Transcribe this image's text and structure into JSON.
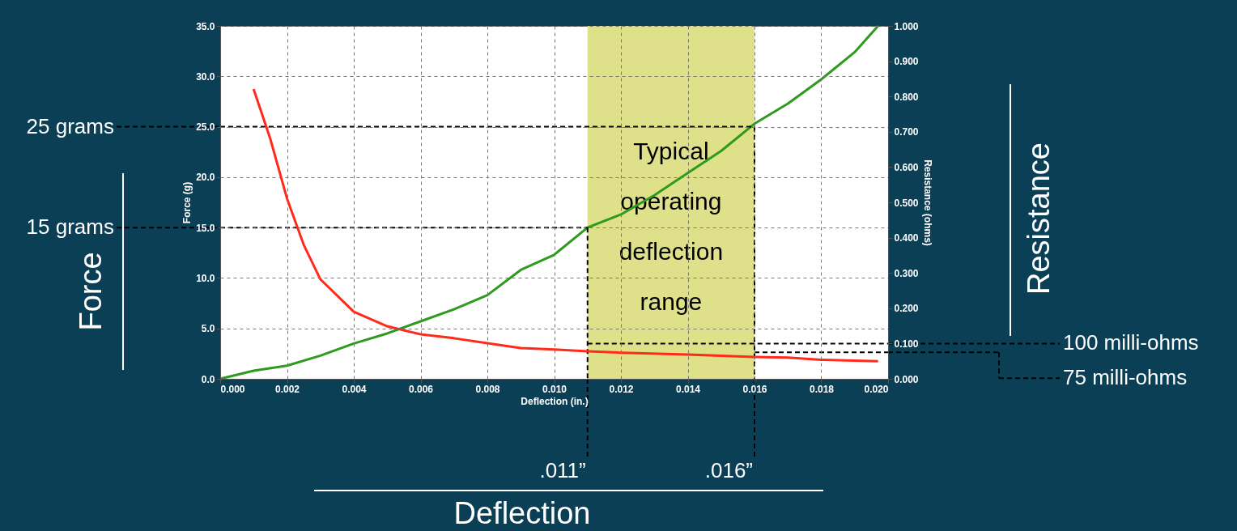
{
  "chart_data": {
    "type": "line",
    "xlabel": "Deflection (in.)",
    "ylabel": "Force (g)",
    "y2label": "Resistance (ohms)",
    "xlim": [
      0,
      0.02
    ],
    "xticks": [
      {
        "value": 0,
        "label": "0.000"
      },
      0.002,
      0.004,
      0.006,
      0.008,
      {
        "value": 0.01,
        "label": "0.010"
      },
      0.012,
      0.014,
      0.016,
      0.018,
      {
        "value": 0.02,
        "label": "0.020"
      }
    ],
    "ylim": [
      0,
      35
    ],
    "yticks": [
      {
        "value": 0,
        "label": "0.0"
      },
      {
        "value": 5,
        "label": "5.0"
      },
      {
        "value": 10,
        "label": "10.0"
      },
      {
        "value": 15,
        "label": "15.0"
      },
      {
        "value": 20,
        "label": "20.0"
      },
      {
        "value": 25,
        "label": "25.0"
      },
      {
        "value": 30,
        "label": "30.0"
      },
      {
        "value": 35,
        "label": "35.0"
      }
    ],
    "y2lim": [
      0,
      1
    ],
    "y2ticks": [
      {
        "value": 0,
        "label": "0.000"
      },
      {
        "value": 0.1,
        "label": "0.100"
      },
      {
        "value": 0.2,
        "label": "0.200"
      },
      {
        "value": 0.3,
        "label": "0.300"
      },
      {
        "value": 0.4,
        "label": "0.400"
      },
      {
        "value": 0.5,
        "label": "0.500"
      },
      {
        "value": 0.6,
        "label": "0.600"
      },
      {
        "value": 0.7,
        "label": "0.700"
      },
      {
        "value": 0.8,
        "label": "0.800"
      },
      {
        "value": 0.9,
        "label": "0.900"
      },
      {
        "value": 1,
        "label": "1.000"
      }
    ],
    "grid": true,
    "marker": "none",
    "line_style": "solid",
    "series": [
      {
        "color": "#2e9a1e",
        "x": [
          0,
          0.001,
          0.002,
          0.003,
          0.004,
          0.005,
          0.006,
          0.007,
          0.008,
          0.009,
          0.01,
          0.011,
          0.012,
          0.013,
          0.014,
          0.015,
          0.016,
          0.017,
          0.018,
          0.019,
          0.0197
        ],
        "values": [
          0,
          0.8,
          1.3,
          2.3,
          3.5,
          4.5,
          5.7,
          6.9,
          8.3,
          10.8,
          12.3,
          15.0,
          16.3,
          18.2,
          20.4,
          22.6,
          25.3,
          27.3,
          29.7,
          32.4,
          35
        ]
      },
      {
        "color": "#ff2a1a",
        "axis": "y2",
        "x": [
          0.001,
          0.0015,
          0.002,
          0.0025,
          0.003,
          0.004,
          0.005,
          0.006,
          0.007,
          0.008,
          0.009,
          0.01,
          0.011,
          0.012,
          0.014,
          0.016,
          0.017,
          0.018,
          0.0197
        ],
        "values": [
          0.821,
          0.68,
          0.511,
          0.38,
          0.282,
          0.19,
          0.149,
          0.126,
          0.115,
          0.101,
          0.087,
          0.083,
          0.078,
          0.074,
          0.069,
          0.062,
          0.06,
          0.054,
          0.05
        ]
      }
    ],
    "bands": [
      {
        "axis": "x",
        "from": 0.011,
        "to": 0.016,
        "label": "Typical operating deflection range",
        "color": "#dfe08a"
      }
    ],
    "ref_lines": [
      {
        "axis": "x",
        "value": 0.011,
        "label": ".011”",
        "line_style": "dashed"
      },
      {
        "axis": "x",
        "value": 0.016,
        "label": ".016”",
        "line_style": "dashed"
      },
      {
        "axis": "y",
        "value": 15,
        "label": "15 grams",
        "line_style": "dashed"
      },
      {
        "axis": "y",
        "value": 25,
        "label": "25 grams",
        "line_style": "dashed"
      },
      {
        "axis": "y2",
        "value": 0.1,
        "label": "100 milli-ohms",
        "line_style": "dashed"
      },
      {
        "axis": "y2",
        "value": 0.075,
        "label": "75 milli-ohms",
        "line_style": "dashed"
      }
    ],
    "annotations": [
      "Force",
      "Resistance",
      "Deflection"
    ]
  }
}
